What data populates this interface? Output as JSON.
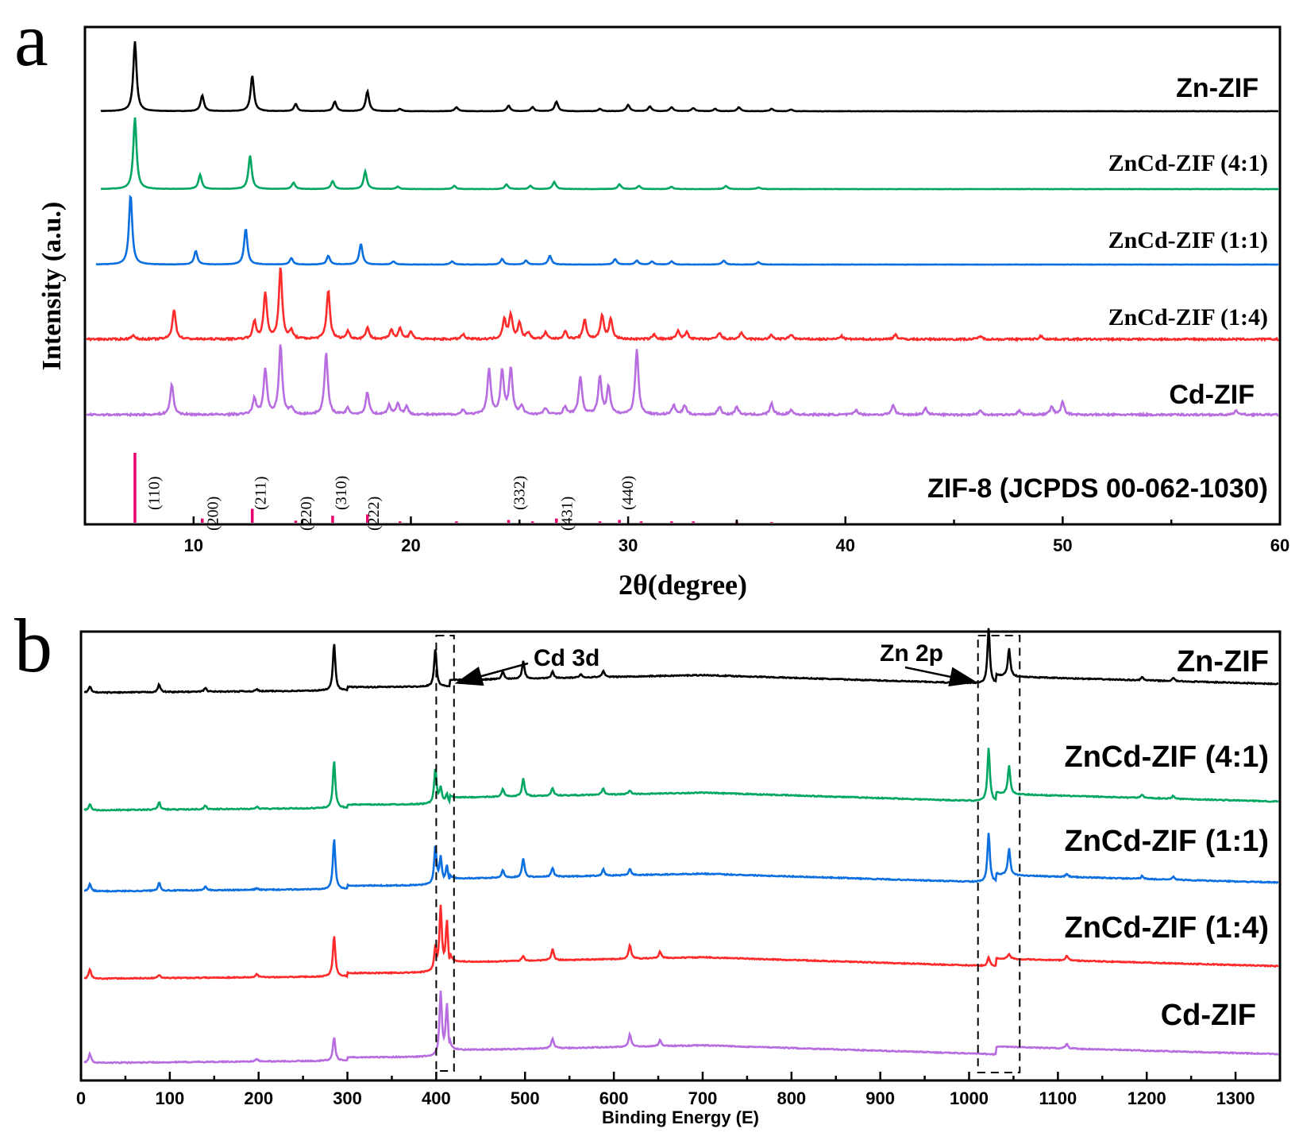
{
  "chart_data": [
    {
      "panel": "a",
      "type": "line",
      "xlabel": "2θ(degree)",
      "ylabel": "Intensity (a.u.)",
      "xlim": [
        5,
        60
      ],
      "xticks": [
        10,
        20,
        30,
        40,
        50,
        60
      ],
      "grid": false,
      "series": [
        {
          "name": "Zn-ZIF",
          "color": "#000000",
          "peaks": [
            [
              7.3,
              88
            ],
            [
              10.4,
              20
            ],
            [
              12.7,
              45
            ],
            [
              14.7,
              9
            ],
            [
              16.5,
              12
            ],
            [
              18.0,
              25
            ],
            [
              19.5,
              3
            ],
            [
              22.1,
              5
            ],
            [
              24.5,
              7
            ],
            [
              25.6,
              5
            ],
            [
              26.7,
              12
            ],
            [
              28.7,
              3
            ],
            [
              30.0,
              8
            ],
            [
              31.0,
              6
            ],
            [
              32.0,
              5
            ],
            [
              33.0,
              4
            ],
            [
              34.0,
              3
            ],
            [
              35.1,
              5
            ],
            [
              36.6,
              3
            ],
            [
              37.5,
              2
            ]
          ]
        },
        {
          "name": "ZnCd-ZIF (4:1)",
          "color": "#00a661",
          "peaks": [
            [
              7.3,
              90
            ],
            [
              10.3,
              18
            ],
            [
              12.6,
              42
            ],
            [
              14.6,
              8
            ],
            [
              16.4,
              10
            ],
            [
              17.9,
              22
            ],
            [
              19.4,
              3
            ],
            [
              22.0,
              4
            ],
            [
              24.4,
              6
            ],
            [
              25.5,
              4
            ],
            [
              26.6,
              9
            ],
            [
              29.6,
              6
            ],
            [
              30.5,
              4
            ],
            [
              32.0,
              3
            ],
            [
              34.5,
              4
            ],
            [
              36.0,
              2
            ]
          ]
        },
        {
          "name": "ZnCd-ZIF (1:1)",
          "color": "#0b6fe0",
          "peaks": [
            [
              7.1,
              88
            ],
            [
              10.1,
              17
            ],
            [
              12.4,
              45
            ],
            [
              14.5,
              8
            ],
            [
              16.2,
              11
            ],
            [
              17.7,
              26
            ],
            [
              19.2,
              4
            ],
            [
              21.9,
              4
            ],
            [
              24.2,
              7
            ],
            [
              25.3,
              5
            ],
            [
              26.4,
              11
            ],
            [
              29.4,
              7
            ],
            [
              30.4,
              5
            ],
            [
              31.1,
              4
            ],
            [
              32.0,
              4
            ],
            [
              34.4,
              5
            ],
            [
              36.0,
              3
            ]
          ]
        },
        {
          "name": "ZnCd-ZIF (1:4)",
          "color": "#ff2a2a",
          "peaks": [
            [
              7.2,
              5
            ],
            [
              9.1,
              38
            ],
            [
              12.8,
              22
            ],
            [
              13.3,
              58
            ],
            [
              14.0,
              90
            ],
            [
              14.5,
              10
            ],
            [
              16.2,
              62
            ],
            [
              17.1,
              10
            ],
            [
              18.0,
              15
            ],
            [
              19.1,
              12
            ],
            [
              19.5,
              14
            ],
            [
              20.0,
              10
            ],
            [
              22.4,
              6
            ],
            [
              24.3,
              25
            ],
            [
              24.6,
              30
            ],
            [
              25.0,
              20
            ],
            [
              25.4,
              8
            ],
            [
              26.2,
              8
            ],
            [
              27.1,
              10
            ],
            [
              28.0,
              25
            ],
            [
              28.8,
              30
            ],
            [
              29.2,
              25
            ],
            [
              31.2,
              6
            ],
            [
              32.3,
              10
            ],
            [
              32.7,
              9
            ],
            [
              34.2,
              8
            ],
            [
              35.2,
              8
            ],
            [
              36.6,
              5
            ],
            [
              37.5,
              6
            ],
            [
              39.8,
              4
            ],
            [
              42.3,
              6
            ],
            [
              46.2,
              4
            ],
            [
              49.0,
              4
            ]
          ]
        },
        {
          "name": "Cd-ZIF",
          "color": "#b76de0",
          "peaks": [
            [
              9.0,
              38
            ],
            [
              12.8,
              20
            ],
            [
              13.3,
              58
            ],
            [
              14.0,
              88
            ],
            [
              14.5,
              8
            ],
            [
              16.1,
              78
            ],
            [
              17.1,
              8
            ],
            [
              18.0,
              28
            ],
            [
              19.0,
              12
            ],
            [
              19.4,
              14
            ],
            [
              19.8,
              10
            ],
            [
              22.4,
              6
            ],
            [
              23.6,
              58
            ],
            [
              24.2,
              55
            ],
            [
              24.6,
              58
            ],
            [
              25.1,
              10
            ],
            [
              26.2,
              8
            ],
            [
              27.1,
              10
            ],
            [
              27.8,
              48
            ],
            [
              28.7,
              48
            ],
            [
              29.1,
              35
            ],
            [
              30.4,
              82
            ],
            [
              32.1,
              12
            ],
            [
              32.6,
              12
            ],
            [
              34.2,
              10
            ],
            [
              35.0,
              10
            ],
            [
              36.6,
              14
            ],
            [
              37.5,
              6
            ],
            [
              40.5,
              6
            ],
            [
              42.2,
              12
            ],
            [
              43.7,
              8
            ],
            [
              46.2,
              5
            ],
            [
              48.0,
              5
            ],
            [
              49.5,
              10
            ],
            [
              50.0,
              16
            ],
            [
              58.0,
              5
            ]
          ]
        }
      ],
      "reference": {
        "name": "ZIF-8 (JCPDS 00-062-1030)",
        "color": "#e8006e",
        "sticks": [
          [
            7.3,
            100
          ],
          [
            10.4,
            6
          ],
          [
            12.7,
            20
          ],
          [
            14.7,
            3
          ],
          [
            16.4,
            10
          ],
          [
            18.0,
            12
          ],
          [
            19.5,
            2
          ],
          [
            22.1,
            2
          ],
          [
            24.5,
            4
          ],
          [
            25.6,
            2
          ],
          [
            26.7,
            6
          ],
          [
            28.7,
            2
          ],
          [
            29.6,
            4
          ],
          [
            30.6,
            2
          ],
          [
            32.0,
            2
          ],
          [
            33.0,
            2
          ],
          [
            35.0,
            2
          ],
          [
            36.6,
            1
          ]
        ],
        "hkl": [
          [
            "(110)",
            8.2
          ],
          [
            "(200)",
            10.9
          ],
          [
            "(211)",
            13.1
          ],
          [
            "(220)",
            15.2
          ],
          [
            "(310)",
            16.8
          ],
          [
            "(222)",
            18.3
          ],
          [
            "(332)",
            25.0
          ],
          [
            "(431)",
            27.2
          ],
          [
            "(440)",
            30.0
          ]
        ]
      }
    },
    {
      "panel": "b",
      "type": "line",
      "xlabel": "Binding Energy (E)",
      "ylabel": "",
      "xlim": [
        0,
        1350
      ],
      "xticks": [
        0,
        100,
        200,
        300,
        400,
        500,
        600,
        700,
        800,
        900,
        1000,
        1100,
        1200,
        1300
      ],
      "grid": false,
      "annotations": [
        "Cd 3d",
        "Zn 2p"
      ],
      "series": [
        {
          "name": "Zn-ZIF",
          "color": "#000000",
          "peaks": [
            [
              10,
              10
            ],
            [
              88,
              12
            ],
            [
              140,
              6
            ],
            [
              198,
              3
            ],
            [
              285,
              75
            ],
            [
              399,
              60
            ],
            [
              475,
              12
            ],
            [
              498,
              28
            ],
            [
              531,
              10
            ],
            [
              563,
              5
            ],
            [
              588,
              10
            ],
            [
              1022,
              88
            ],
            [
              1045,
              45
            ],
            [
              1195,
              5
            ],
            [
              1230,
              5
            ]
          ]
        },
        {
          "name": "ZnCd-ZIF (4:1)",
          "color": "#00a661",
          "peaks": [
            [
              10,
              10
            ],
            [
              88,
              12
            ],
            [
              140,
              6
            ],
            [
              198,
              3
            ],
            [
              285,
              75
            ],
            [
              399,
              55
            ],
            [
              405,
              25
            ],
            [
              412,
              15
            ],
            [
              475,
              12
            ],
            [
              498,
              28
            ],
            [
              531,
              12
            ],
            [
              588,
              10
            ],
            [
              618,
              6
            ],
            [
              1022,
              85
            ],
            [
              1045,
              45
            ],
            [
              1195,
              5
            ],
            [
              1230,
              5
            ]
          ]
        },
        {
          "name": "ZnCd-ZIF (1:1)",
          "color": "#0b6fe0",
          "peaks": [
            [
              10,
              12
            ],
            [
              88,
              13
            ],
            [
              140,
              6
            ],
            [
              198,
              3
            ],
            [
              285,
              80
            ],
            [
              399,
              60
            ],
            [
              405,
              42
            ],
            [
              412,
              30
            ],
            [
              475,
              12
            ],
            [
              498,
              30
            ],
            [
              531,
              14
            ],
            [
              588,
              10
            ],
            [
              618,
              10
            ],
            [
              1022,
              78
            ],
            [
              1045,
              42
            ],
            [
              1110,
              5
            ],
            [
              1195,
              5
            ],
            [
              1230,
              5
            ]
          ]
        },
        {
          "name": "ZnCd-ZIF (1:4)",
          "color": "#ff2a2a",
          "peaks": [
            [
              10,
              15
            ],
            [
              88,
              5
            ],
            [
              198,
              5
            ],
            [
              285,
              65
            ],
            [
              399,
              35
            ],
            [
              405,
              100
            ],
            [
              412,
              78
            ],
            [
              498,
              8
            ],
            [
              531,
              18
            ],
            [
              618,
              22
            ],
            [
              652,
              10
            ],
            [
              1022,
              14
            ],
            [
              1045,
              8
            ],
            [
              1110,
              8
            ]
          ]
        },
        {
          "name": "Cd-ZIF",
          "color": "#b76de0",
          "peaks": [
            [
              10,
              15
            ],
            [
              198,
              4
            ],
            [
              285,
              38
            ],
            [
              405,
              100
            ],
            [
              412,
              80
            ],
            [
              531,
              16
            ],
            [
              618,
              20
            ],
            [
              652,
              10
            ],
            [
              1110,
              8
            ]
          ]
        }
      ]
    }
  ],
  "panel_a": {
    "letter": "a"
  },
  "panel_b": {
    "letter": "b"
  }
}
